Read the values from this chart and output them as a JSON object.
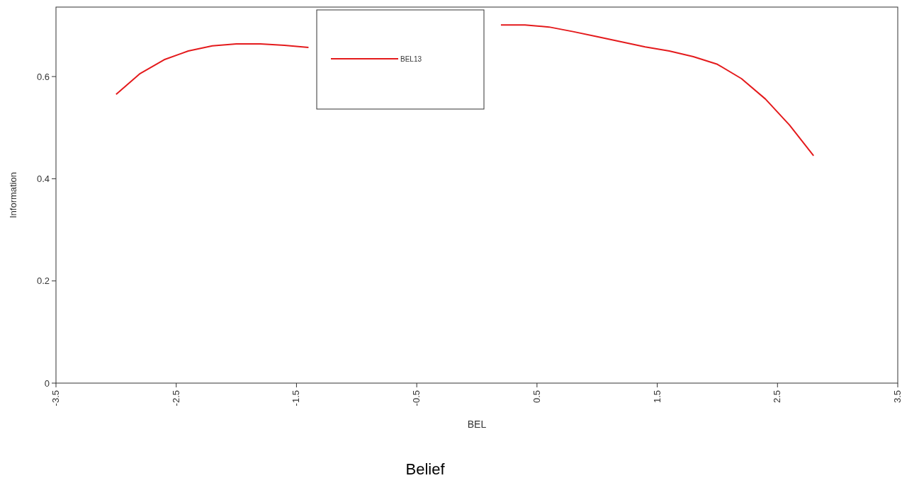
{
  "chart_data": {
    "type": "line",
    "title": "Belief",
    "xlabel": "BEL",
    "ylabel": "Information",
    "x": [
      -3.0,
      -2.8,
      -2.6,
      -2.4,
      -2.2,
      -2.0,
      -1.8,
      -1.6,
      -1.4,
      -1.2,
      -1.0,
      -0.8,
      -0.6,
      -0.4,
      -0.2,
      0.0,
      0.2,
      0.4,
      0.6,
      0.8,
      1.0,
      1.2,
      1.4,
      1.6,
      1.8,
      2.0,
      2.2,
      2.4,
      2.6,
      2.8
    ],
    "series": [
      {
        "name": "BEL13",
        "color": "#e41a1c",
        "values": [
          0.565,
          0.606,
          0.633,
          0.65,
          0.66,
          0.664,
          0.664,
          0.661,
          0.657,
          null,
          null,
          null,
          null,
          null,
          null,
          null,
          0.701,
          0.701,
          0.697,
          0.688,
          0.678,
          0.668,
          0.658,
          0.65,
          0.639,
          0.624,
          0.596,
          0.556,
          0.505,
          0.445
        ]
      }
    ],
    "xlim": [
      -3.5,
      3.5
    ],
    "xticks": [
      -3.5,
      -2.5,
      -1.5,
      -0.5,
      0.5,
      1.5,
      2.5,
      3.5
    ],
    "ylim": [
      0,
      0.736
    ],
    "yticks": [
      0,
      0.2,
      0.4,
      0.6
    ],
    "legend": "top",
    "grid": false,
    "marker": "none",
    "line_style": "solid"
  }
}
